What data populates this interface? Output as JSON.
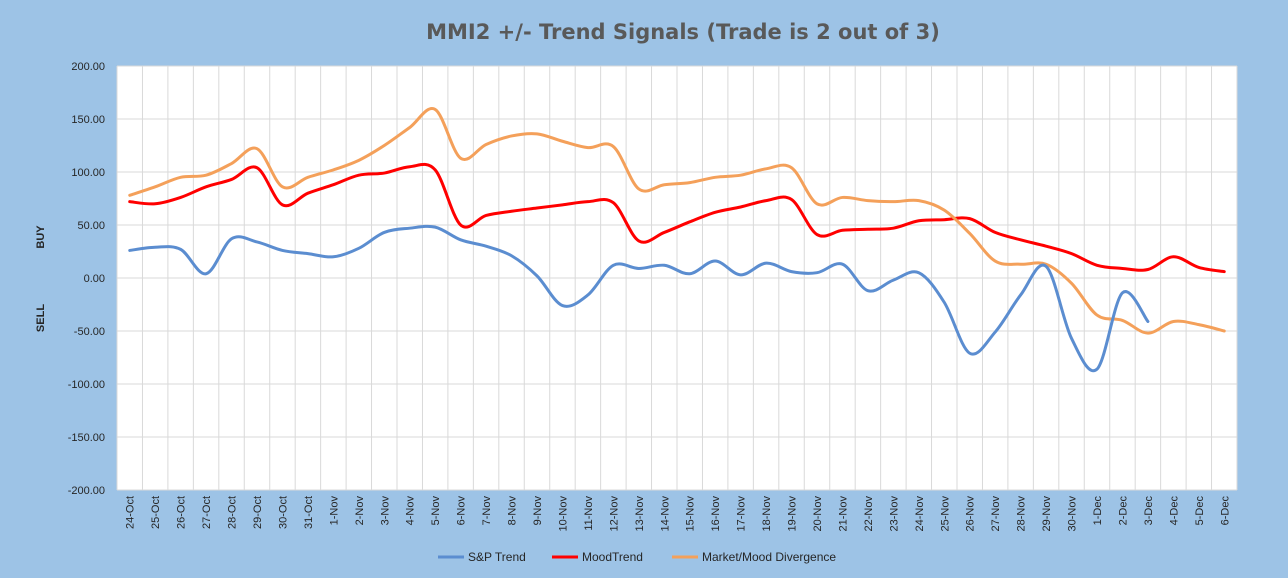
{
  "chart_data": {
    "type": "line",
    "title": "MMI2 +/- Trend Signals (Trade is 2 out of 3)",
    "xlabel": "",
    "ylabel": "",
    "side_labels": {
      "top": "BUY",
      "bottom": "SELL"
    },
    "ylim": [
      -200,
      200
    ],
    "yticks": [
      200,
      150,
      100,
      50,
      0,
      -50,
      -100,
      -150,
      -200
    ],
    "ytick_labels": [
      "200.00",
      "150.00",
      "100.00",
      "50.00",
      "0.00",
      "-50.00",
      "-100.00",
      "-150.00",
      "-200.00"
    ],
    "grid": true,
    "legend_position": "bottom",
    "categories": [
      "24-Oct",
      "25-Oct",
      "26-Oct",
      "27-Oct",
      "28-Oct",
      "29-Oct",
      "30-Oct",
      "31-Oct",
      "1-Nov",
      "2-Nov",
      "3-Nov",
      "4-Nov",
      "5-Nov",
      "6-Nov",
      "7-Nov",
      "8-Nov",
      "9-Nov",
      "10-Nov",
      "11-Nov",
      "12-Nov",
      "13-Nov",
      "14-Nov",
      "15-Nov",
      "16-Nov",
      "17-Nov",
      "18-Nov",
      "19-Nov",
      "20-Nov",
      "21-Nov",
      "22-Nov",
      "23-Nov",
      "24-Nov",
      "25-Nov",
      "26-Nov",
      "27-Nov",
      "28-Nov",
      "29-Nov",
      "30-Nov",
      "1-Dec",
      "2-Dec",
      "3-Dec",
      "4-Dec",
      "5-Dec",
      "6-Dec"
    ],
    "series": [
      {
        "name": "S&P Trend",
        "color": "#5B8DD0",
        "values": [
          26,
          29,
          27,
          4,
          37,
          34,
          26,
          23,
          20,
          28,
          43,
          47,
          48,
          36,
          30,
          21,
          2,
          -26,
          -16,
          12,
          9,
          12,
          4,
          16,
          3,
          14,
          6,
          5,
          13,
          -12,
          -2,
          5,
          -23,
          -71,
          -51,
          -16,
          11,
          -57,
          -86,
          -14,
          -41,
          null,
          null,
          null
        ]
      },
      {
        "name": "MoodTrend",
        "color": "#FF0000",
        "values": [
          72,
          70,
          76,
          86,
          93,
          104,
          69,
          80,
          88,
          97,
          99,
          105,
          102,
          50,
          59,
          63,
          66,
          69,
          72,
          71,
          35,
          43,
          53,
          62,
          67,
          73,
          74,
          41,
          45,
          46,
          47,
          54,
          55,
          56,
          43,
          36,
          30,
          23,
          12,
          9,
          8,
          20,
          10,
          6
        ]
      },
      {
        "name": "Market/Mood Divergence",
        "color": "#F4A05A",
        "values": [
          78,
          86,
          95,
          97,
          108,
          122,
          86,
          95,
          102,
          111,
          125,
          142,
          159,
          113,
          126,
          134,
          136,
          129,
          123,
          124,
          84,
          88,
          90,
          95,
          97,
          103,
          104,
          70,
          76,
          73,
          72,
          73,
          64,
          42,
          16,
          13,
          13,
          -5,
          -35,
          -40,
          -52,
          -41,
          -44,
          -50
        ]
      }
    ]
  }
}
